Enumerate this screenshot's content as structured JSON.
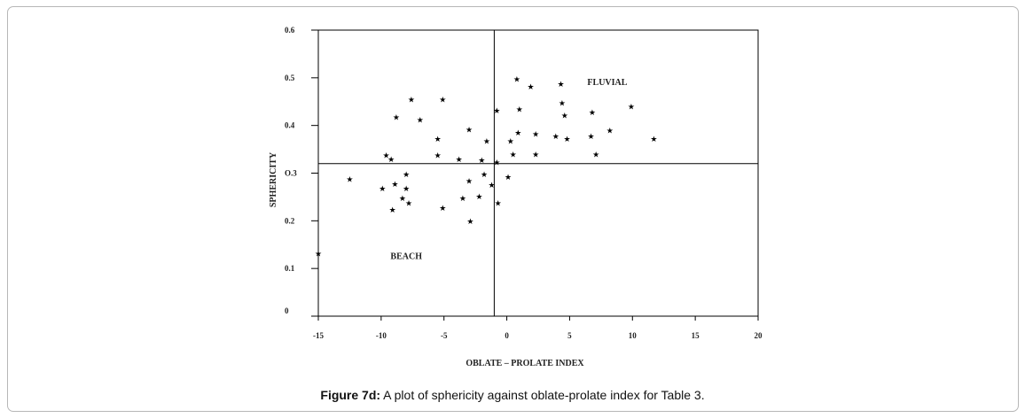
{
  "chart_data": {
    "type": "scatter",
    "xlabel": "OBLATE – PROLATE INDEX",
    "ylabel": "SPHERICITY",
    "xlim": [
      -15,
      20
    ],
    "ylim": [
      0,
      0.6
    ],
    "x_ticks": [
      "-15",
      "-10",
      "-5",
      "0",
      "5",
      "10",
      "15",
      "20"
    ],
    "y_ticks": [
      "0",
      "0.1",
      "0.2",
      "O.3",
      "0.4",
      "0.5",
      "0.6"
    ],
    "grid": false,
    "reference_lines": {
      "x": -1.0,
      "y": 0.32
    },
    "annotations": [
      {
        "text": "FLUVIAL",
        "x": 8.0,
        "y": 0.485
      },
      {
        "text": "BEACH",
        "x": -8.0,
        "y": 0.12
      }
    ],
    "marker": "★",
    "points": [
      {
        "x": -12.5,
        "y": 0.288
      },
      {
        "x": -15.0,
        "y": 0.132
      },
      {
        "x": -9.9,
        "y": 0.268
      },
      {
        "x": -9.6,
        "y": 0.338
      },
      {
        "x": -9.2,
        "y": 0.33
      },
      {
        "x": -8.9,
        "y": 0.278
      },
      {
        "x": -9.1,
        "y": 0.224
      },
      {
        "x": -8.8,
        "y": 0.418
      },
      {
        "x": -8.3,
        "y": 0.248
      },
      {
        "x": -8.0,
        "y": 0.298
      },
      {
        "x": -8.0,
        "y": 0.268
      },
      {
        "x": -7.8,
        "y": 0.238
      },
      {
        "x": -7.6,
        "y": 0.455
      },
      {
        "x": -6.9,
        "y": 0.412
      },
      {
        "x": -5.5,
        "y": 0.372
      },
      {
        "x": -5.5,
        "y": 0.338
      },
      {
        "x": -5.1,
        "y": 0.455
      },
      {
        "x": -5.1,
        "y": 0.228
      },
      {
        "x": -3.8,
        "y": 0.33
      },
      {
        "x": -3.5,
        "y": 0.248
      },
      {
        "x": -3.0,
        "y": 0.392
      },
      {
        "x": -3.0,
        "y": 0.284
      },
      {
        "x": -2.9,
        "y": 0.2
      },
      {
        "x": -2.2,
        "y": 0.252
      },
      {
        "x": -2.0,
        "y": 0.328
      },
      {
        "x": -1.8,
        "y": 0.298
      },
      {
        "x": -1.6,
        "y": 0.368
      },
      {
        "x": -1.2,
        "y": 0.276
      },
      {
        "x": -0.8,
        "y": 0.432
      },
      {
        "x": -0.8,
        "y": 0.323
      },
      {
        "x": -0.7,
        "y": 0.238
      },
      {
        "x": 0.1,
        "y": 0.293
      },
      {
        "x": 0.3,
        "y": 0.368
      },
      {
        "x": 0.5,
        "y": 0.34
      },
      {
        "x": 0.8,
        "y": 0.498
      },
      {
        "x": 0.9,
        "y": 0.385
      },
      {
        "x": 1.0,
        "y": 0.435
      },
      {
        "x": 1.9,
        "y": 0.482
      },
      {
        "x": 2.3,
        "y": 0.383
      },
      {
        "x": 2.3,
        "y": 0.34
      },
      {
        "x": 3.9,
        "y": 0.378
      },
      {
        "x": 4.3,
        "y": 0.488
      },
      {
        "x": 4.4,
        "y": 0.448
      },
      {
        "x": 4.6,
        "y": 0.422
      },
      {
        "x": 4.8,
        "y": 0.372
      },
      {
        "x": 6.7,
        "y": 0.378
      },
      {
        "x": 6.8,
        "y": 0.428
      },
      {
        "x": 7.1,
        "y": 0.34
      },
      {
        "x": 8.2,
        "y": 0.39
      },
      {
        "x": 9.9,
        "y": 0.44
      },
      {
        "x": 11.7,
        "y": 0.372
      }
    ]
  },
  "caption": {
    "label": "Figure 7d:",
    "text": " A plot of sphericity against oblate-prolate index for Table 3."
  }
}
